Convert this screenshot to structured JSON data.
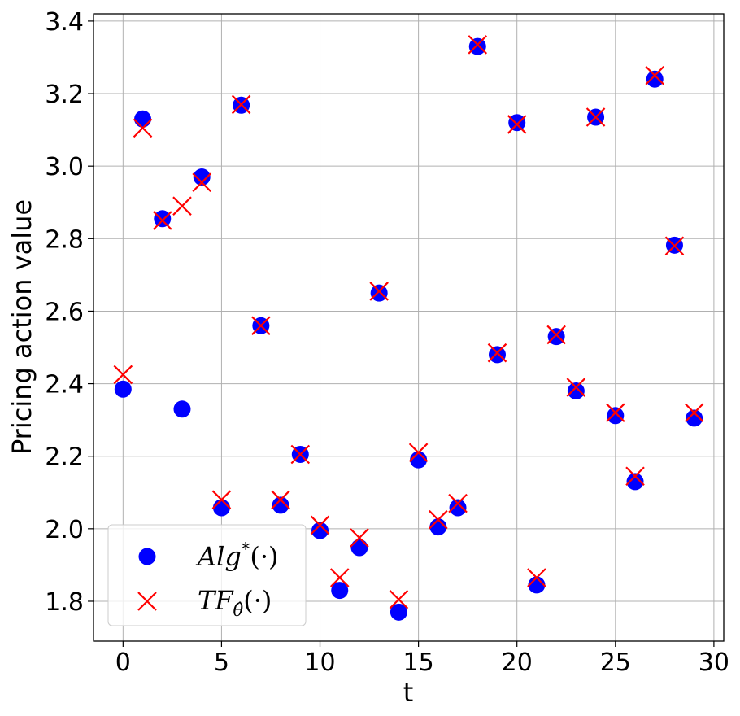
{
  "chart_data": {
    "type": "scatter",
    "title": "",
    "xlabel": "t",
    "ylabel": "Pricing action value",
    "xlim": [
      -1.5,
      30.5
    ],
    "ylim": [
      1.69,
      3.42
    ],
    "xticks": [
      0,
      5,
      10,
      15,
      20,
      25,
      30
    ],
    "xtick_labels": [
      "0",
      "5",
      "10",
      "15",
      "20",
      "25",
      "30"
    ],
    "yticks": [
      1.8,
      2.0,
      2.2,
      2.4,
      2.6,
      2.8,
      3.0,
      3.2,
      3.4
    ],
    "ytick_labels": [
      "1.8",
      "2.0",
      "2.2",
      "2.4",
      "2.6",
      "2.8",
      "3.0",
      "3.2",
      "3.4"
    ],
    "grid": true,
    "legend_position": "lower-left",
    "series": [
      {
        "name": "Alg*(·)",
        "marker": "circle",
        "color": "#0000ff",
        "x": [
          0,
          1,
          2,
          3,
          4,
          5,
          6,
          7,
          8,
          9,
          10,
          11,
          12,
          13,
          14,
          15,
          16,
          17,
          18,
          19,
          20,
          21,
          22,
          23,
          24,
          25,
          26,
          27,
          28,
          29
        ],
        "y": [
          2.385,
          3.13,
          2.855,
          2.33,
          2.97,
          2.058,
          3.168,
          2.56,
          2.065,
          2.205,
          1.995,
          1.83,
          1.948,
          2.65,
          1.77,
          2.19,
          2.005,
          2.058,
          3.33,
          2.48,
          3.12,
          1.845,
          2.53,
          2.38,
          3.135,
          2.312,
          2.13,
          3.24,
          2.782,
          2.305
        ]
      },
      {
        "name": "TF_θ̂(·)",
        "marker": "x",
        "color": "#ff0000",
        "x": [
          0,
          1,
          2,
          3,
          4,
          5,
          6,
          7,
          8,
          9,
          10,
          11,
          12,
          13,
          14,
          15,
          16,
          17,
          18,
          19,
          20,
          21,
          22,
          23,
          24,
          25,
          26,
          27,
          28,
          29
        ],
        "y": [
          2.425,
          3.105,
          2.85,
          2.89,
          2.955,
          2.08,
          3.17,
          2.56,
          2.08,
          2.205,
          2.01,
          1.865,
          1.975,
          2.655,
          1.805,
          2.21,
          2.025,
          2.07,
          3.335,
          2.485,
          3.115,
          1.865,
          2.535,
          2.39,
          3.135,
          2.32,
          2.145,
          3.25,
          2.78,
          2.32
        ]
      }
    ]
  },
  "legend": {
    "alg_prefix": "Alg",
    "alg_sup": "*",
    "alg_suffix": "(·)",
    "tf_prefix": "TF",
    "tf_sub": "θ̂",
    "tf_suffix": "(·)"
  }
}
